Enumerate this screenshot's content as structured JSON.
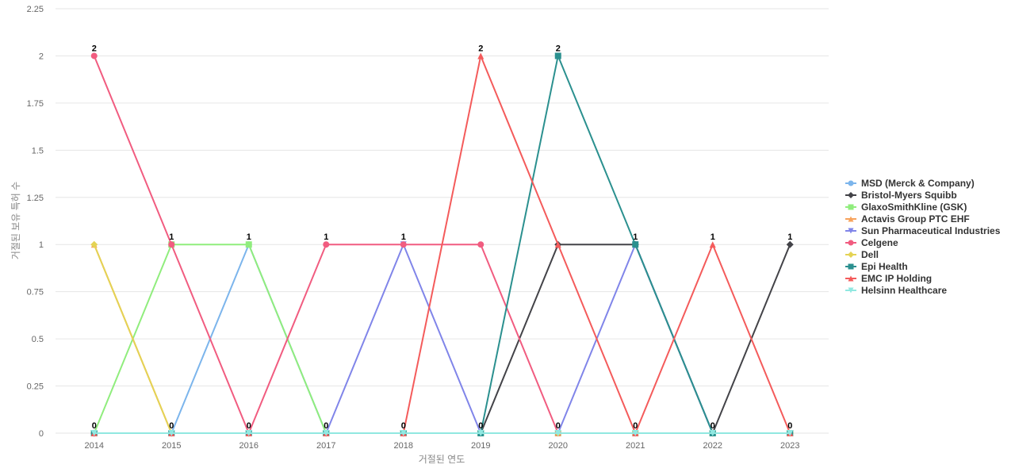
{
  "chart_data": {
    "type": "line",
    "title": "",
    "xlabel": "거절된 연도",
    "ylabel": "거절된 보유 특허 수",
    "x": [
      "2014",
      "2015",
      "2016",
      "2017",
      "2018",
      "2019",
      "2020",
      "2021",
      "2022",
      "2023"
    ],
    "ylim": [
      0,
      2.25
    ],
    "yticks": [
      "0",
      "0.25",
      "0.5",
      "0.75",
      "1",
      "1.25",
      "1.5",
      "1.75",
      "2",
      "2.25"
    ],
    "grid": true,
    "legend_position": "right",
    "series": [
      {
        "name": "MSD (Merck & Company)",
        "color": "#7cb5ec",
        "marker": "circle",
        "values": [
          0,
          0,
          1,
          0,
          0,
          0,
          0,
          0,
          0,
          0
        ]
      },
      {
        "name": "Bristol-Myers Squibb",
        "color": "#434348",
        "marker": "diamond",
        "values": [
          0,
          0,
          0,
          0,
          0,
          0,
          1,
          1,
          0,
          1
        ]
      },
      {
        "name": "GlaxoSmithKline (GSK)",
        "color": "#90ed7d",
        "marker": "square",
        "values": [
          0,
          1,
          1,
          0,
          0,
          0,
          0,
          0,
          0,
          0
        ]
      },
      {
        "name": "Actavis Group PTC EHF",
        "color": "#f7a35c",
        "marker": "triangle",
        "values": [
          1,
          0,
          0,
          0,
          0,
          0,
          0,
          0,
          0,
          0
        ]
      },
      {
        "name": "Sun Pharmaceutical Industries",
        "color": "#8085e9",
        "marker": "triangle-down",
        "values": [
          0,
          0,
          0,
          0,
          1,
          0,
          0,
          1,
          0,
          0
        ]
      },
      {
        "name": "Celgene",
        "color": "#f15c80",
        "marker": "circle",
        "values": [
          2,
          1,
          0,
          1,
          1,
          1,
          0,
          0,
          0,
          0
        ]
      },
      {
        "name": "Dell",
        "color": "#e4d354",
        "marker": "diamond",
        "values": [
          1,
          0,
          0,
          0,
          0,
          0,
          0,
          0,
          0,
          0
        ]
      },
      {
        "name": "Epi Health",
        "color": "#2b908f",
        "marker": "square",
        "values": [
          0,
          0,
          0,
          0,
          0,
          0,
          2,
          1,
          0,
          0
        ]
      },
      {
        "name": "EMC IP Holding",
        "color": "#f45b5b",
        "marker": "triangle",
        "values": [
          0,
          0,
          0,
          0,
          0,
          2,
          1,
          0,
          1,
          0
        ]
      },
      {
        "name": "Helsinn Healthcare",
        "color": "#91e8e1",
        "marker": "triangle-down",
        "values": [
          0,
          0,
          0,
          0,
          0,
          0,
          0,
          0,
          0,
          0
        ]
      }
    ],
    "data_labels": [
      "2",
      "1",
      "1",
      "1",
      "1",
      "2",
      "2",
      "1",
      "1",
      "1"
    ]
  }
}
